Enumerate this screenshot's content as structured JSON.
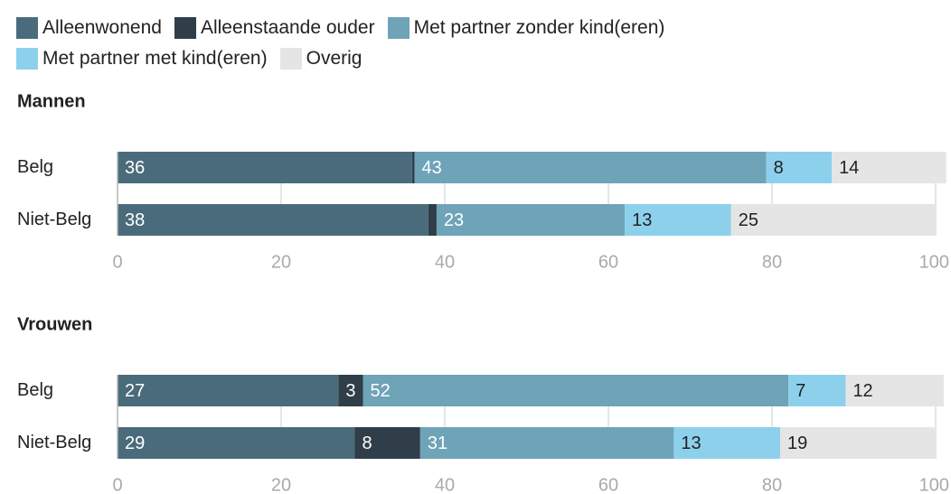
{
  "chart_data": [
    {
      "type": "stacked-barh",
      "title": "Mannen",
      "categories": [
        "Belg",
        "Niet-Belg"
      ],
      "series": [
        {
          "name": "Alleenwonend",
          "color": "#4a6b7c",
          "values": [
            36,
            38
          ]
        },
        {
          "name": "Alleenstaande ouder",
          "color": "#2f3e48",
          "values": [
            0.3,
            1
          ]
        },
        {
          "name": "Met partner zonder kind(eren)",
          "color": "#6fa3b8",
          "values": [
            43,
            23
          ]
        },
        {
          "name": "Met partner met kind(eren)",
          "color": "#8dd0ec",
          "values": [
            8,
            13
          ]
        },
        {
          "name": "Overig",
          "color": "#e5e5e5",
          "values": [
            14,
            25
          ]
        }
      ],
      "xlim": [
        0,
        100
      ],
      "xticks": [
        0,
        20,
        40,
        60,
        80,
        100
      ],
      "grid": true
    },
    {
      "type": "stacked-barh",
      "title": "Vrouwen",
      "categories": [
        "Belg",
        "Niet-Belg"
      ],
      "series": [
        {
          "color": "#4a6b7c",
          "values": [
            27,
            29
          ]
        },
        {
          "color": "#2f3e48",
          "values": [
            3,
            8
          ]
        },
        {
          "color": "#6fa3b8",
          "values": [
            52,
            31
          ]
        },
        {
          "color": "#8dd0ec",
          "values": [
            7,
            13
          ]
        },
        {
          "color": "#e5e5e5",
          "values": [
            12,
            19
          ]
        }
      ],
      "xlim": [
        0,
        100
      ],
      "xticks": [
        0,
        20,
        40,
        60,
        80,
        100
      ],
      "grid": true
    }
  ]
}
